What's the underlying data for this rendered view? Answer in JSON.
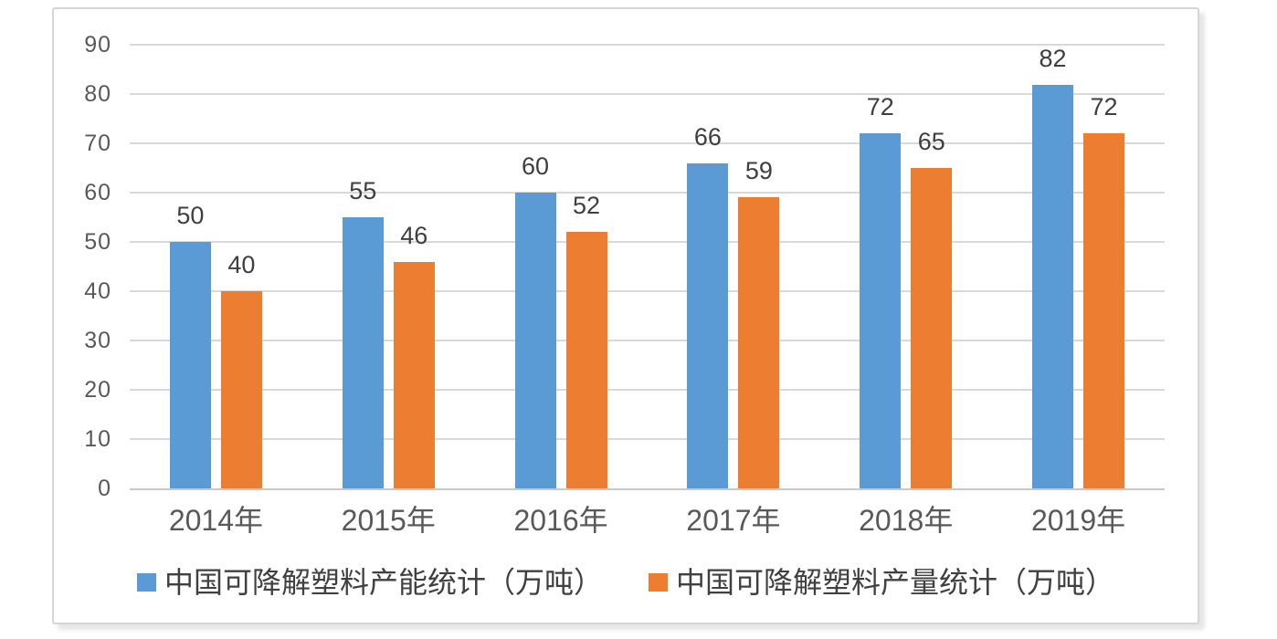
{
  "chart_data": {
    "type": "bar",
    "title": "",
    "categories": [
      "2014年",
      "2015年",
      "2016年",
      "2017年",
      "2018年",
      "2019年"
    ],
    "series": [
      {
        "name": "中国可降解塑料产能统计（万吨）",
        "color": "#5B9BD5",
        "values": [
          50,
          55,
          60,
          66,
          72,
          82
        ]
      },
      {
        "name": "中国可降解塑料产量统计（万吨）",
        "color": "#ED7D31",
        "values": [
          40,
          46,
          52,
          59,
          65,
          72
        ]
      }
    ],
    "y_axis": {
      "min": 0,
      "max": 90,
      "step": 10,
      "ticks": [
        0,
        10,
        20,
        30,
        40,
        50,
        60,
        70,
        80,
        90
      ]
    },
    "grid": true,
    "data_labels": true,
    "legend_position": "bottom"
  },
  "style": {
    "grid_color": "#D9D9D9",
    "axis_line_color": "#C9C9C9",
    "tick_label_color": "#595959",
    "data_label_color": "#3F3F3F",
    "legend_text_color": "#404040",
    "card_border_color": "#D6D6D6",
    "background": "#FFFFFF"
  }
}
